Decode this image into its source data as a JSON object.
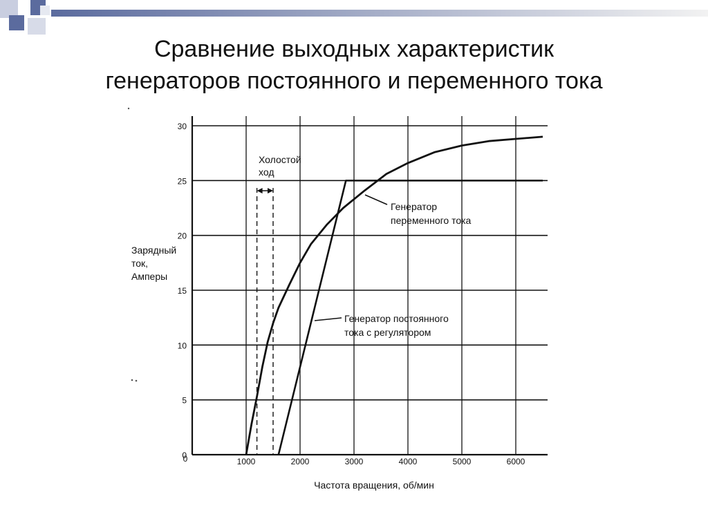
{
  "title_lines": [
    "Сравнение выходных характеристик",
    "генераторов постоянного и переменного тока"
  ],
  "colors": {
    "accent": "#5b6b9e",
    "gradient_end": "#f2f2f2",
    "ink": "#111111"
  },
  "chart_data": {
    "type": "line",
    "xlabel": "Частота вращения, об/мин",
    "ylabel_lines": [
      "Зарядный",
      "ток,",
      "Амперы"
    ],
    "xlim": [
      0,
      6500
    ],
    "ylim": [
      0,
      30
    ],
    "x_ticks": [
      1000,
      2000,
      3000,
      4000,
      5000,
      6000
    ],
    "x_tick_labels": [
      "1000",
      "2000",
      "3000",
      "4000",
      "5000",
      "6000"
    ],
    "y_ticks": [
      0,
      5,
      10,
      15,
      20,
      25,
      30
    ],
    "y_tick_labels": [
      "0",
      "5",
      "10",
      "15",
      "20",
      "25",
      "30"
    ],
    "grid": true,
    "series": [
      {
        "name_lines": [
          "Генератор",
          "переменного тока"
        ],
        "x": [
          1000,
          1100,
          1200,
          1300,
          1400,
          1500,
          1600,
          1800,
          2000,
          2200,
          2500,
          2800,
          3200,
          3600,
          4000,
          4500,
          5000,
          5500,
          6000,
          6500
        ],
        "y": [
          0,
          2.8,
          5.3,
          8.0,
          10.3,
          12.0,
          13.4,
          15.5,
          17.5,
          19.2,
          21.0,
          22.5,
          24.1,
          25.6,
          26.6,
          27.6,
          28.2,
          28.6,
          28.8,
          29.0
        ]
      },
      {
        "name_lines": [
          "Генератор постоянного",
          "тока с регулятором"
        ],
        "x": [
          1600,
          2100,
          2700,
          2850,
          6500
        ],
        "y": [
          0,
          10,
          22,
          25,
          25
        ]
      }
    ],
    "annotations": [
      {
        "text_lines": [
          "Холостой",
          "ход"
        ],
        "x_range": [
          1200,
          1500
        ]
      }
    ]
  }
}
